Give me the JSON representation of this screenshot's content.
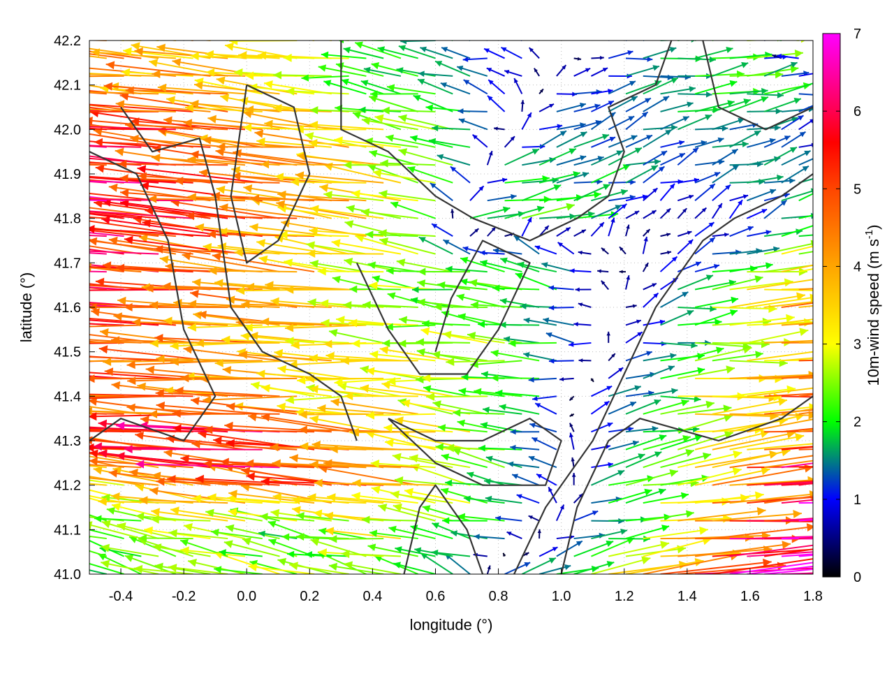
{
  "chart_data": {
    "type": "vector-field",
    "xlabel": "longitude (°)",
    "ylabel": "latitude (°)",
    "xlim": [
      -0.5,
      1.8
    ],
    "ylim": [
      41.0,
      42.2
    ],
    "xticks": [
      "-0.4",
      "-0.2",
      "0.0",
      "0.2",
      "0.4",
      "0.6",
      "0.8",
      "1.0",
      "1.2",
      "1.4",
      "1.6",
      "1.8"
    ],
    "yticks": [
      "41.0",
      "41.1",
      "41.2",
      "41.3",
      "41.4",
      "41.5",
      "41.6",
      "41.7",
      "41.8",
      "41.9",
      "42.0",
      "42.1",
      "42.2"
    ],
    "grid": true,
    "colorbar": {
      "label": "10m-wind speed (m s",
      "label_sup": "-1",
      "label_end": ")",
      "range": [
        0,
        7
      ],
      "ticks": [
        "0",
        "1",
        "2",
        "3",
        "4",
        "5",
        "6",
        "7"
      ],
      "colors": [
        {
          "v": 0,
          "c": "#000000"
        },
        {
          "v": 1,
          "c": "#0000ff"
        },
        {
          "v": 1.5,
          "c": "#008080"
        },
        {
          "v": 2,
          "c": "#00ff00"
        },
        {
          "v": 3,
          "c": "#ffff00"
        },
        {
          "v": 4,
          "c": "#ffa500"
        },
        {
          "v": 5,
          "c": "#ff4500"
        },
        {
          "v": 5.6,
          "c": "#ff0000"
        },
        {
          "v": 6,
          "c": "#ff0050"
        },
        {
          "v": 7,
          "c": "#ff00ff"
        }
      ]
    },
    "vector_grid": {
      "lons": [
        -0.5,
        -0.4,
        -0.3,
        -0.2,
        -0.1,
        0.0,
        0.1,
        0.2,
        0.3,
        0.4,
        0.5,
        0.6,
        0.7,
        0.8,
        0.9,
        1.0,
        1.1,
        1.2,
        1.3,
        1.4,
        1.5,
        1.6,
        1.7,
        1.8
      ],
      "lats": [
        42.2,
        42.1,
        42.0,
        41.9,
        41.8,
        41.7,
        41.6,
        41.5,
        41.4,
        41.3,
        41.2,
        41.1,
        41.0
      ],
      "u": [
        [
          -4,
          -4,
          -4,
          -4,
          -3.5,
          -3.5,
          -3,
          -3,
          -3,
          -2.5,
          -2,
          -1.5,
          -1.5,
          -1,
          -1,
          -0.5,
          0.5,
          1,
          1.5,
          2,
          2,
          2.5,
          -2,
          -3
        ],
        [
          -4.5,
          -4.5,
          -4,
          -4,
          -4,
          -3.5,
          -3.5,
          -3,
          -2.5,
          -2,
          -2,
          -2,
          -1.5,
          -1,
          -0.5,
          1,
          1,
          1.5,
          1.5,
          2,
          2,
          2,
          2,
          1.5
        ],
        [
          -5.5,
          -5.5,
          -5,
          -5,
          -4.5,
          -4.5,
          -4,
          -4,
          -3.5,
          -3,
          -2.5,
          -2.5,
          -2,
          -1,
          1,
          1.5,
          1,
          1,
          1.5,
          1.5,
          1.5,
          1.5,
          1,
          0.5
        ],
        [
          -5.5,
          -5.5,
          -5.5,
          -5,
          -5,
          -5,
          -4.5,
          -4.5,
          -4,
          -3.5,
          -3,
          -2.5,
          -2,
          2,
          2,
          1.5,
          1.5,
          1.5,
          1,
          1,
          1.5,
          1.5,
          1.5,
          1
        ],
        [
          -6,
          -6,
          -5.5,
          -5.5,
          -5,
          -5,
          -4.5,
          -4.5,
          -4,
          -3.5,
          -3,
          -2.5,
          2,
          2,
          2,
          2,
          1.5,
          0.5,
          0.5,
          0.5,
          0.5,
          1,
          1.5,
          2
        ],
        [
          -6,
          -5.5,
          -5.5,
          -5,
          -4.5,
          -4.5,
          -4,
          -4,
          -3.5,
          -3,
          -2.5,
          -2.5,
          -2,
          -2,
          -2,
          -1.5,
          -1,
          -0.5,
          0.5,
          1,
          1.5,
          2,
          3,
          3
        ],
        [
          -5.5,
          -5.5,
          -5,
          -5,
          -4.5,
          -4.5,
          -4,
          -4,
          -3.5,
          -3,
          -2.5,
          -2.5,
          -2,
          -2,
          -2,
          -1.5,
          -0.5,
          0.5,
          1,
          2,
          3,
          4,
          4.5,
          4
        ],
        [
          -5.5,
          -5,
          -5,
          -5,
          -4.5,
          -4,
          -4,
          -3.5,
          -3.5,
          -3,
          -3,
          -3,
          -3,
          -2.5,
          -2,
          -2,
          -1,
          1,
          1.5,
          2,
          2.5,
          3,
          4,
          4.5
        ],
        [
          -5,
          -5,
          -4.5,
          -4.5,
          -4,
          -4,
          -4,
          -3.5,
          -3.5,
          -3,
          -3,
          -3,
          -2.5,
          -2.5,
          -2,
          -1,
          1,
          1.5,
          2,
          3,
          3.5,
          4,
          4.5,
          5
        ],
        [
          -5,
          -5,
          -5,
          -5,
          -5.5,
          -6,
          -6,
          -5.5,
          -5,
          -4.5,
          -4,
          -3.5,
          -3,
          -2.5,
          -1.5,
          -1,
          1,
          1.5,
          2,
          3,
          3.5,
          4,
          4.5,
          5.5
        ],
        [
          -3,
          -3,
          -3.5,
          -4,
          -4.5,
          -5,
          -5,
          -5,
          -5.5,
          -5,
          -4.5,
          -3.5,
          -3,
          -2,
          -1.5,
          -1,
          1.5,
          2,
          2.5,
          3,
          4,
          5,
          6,
          6.5
        ],
        [
          -2,
          -2,
          -2.5,
          -2.5,
          -2.5,
          -2.5,
          -2,
          -2,
          -2,
          -2.5,
          -3,
          -2.5,
          -2,
          -2,
          -1,
          1,
          1.5,
          2,
          3,
          4.5,
          5.5,
          6,
          6.5,
          7
        ],
        [
          -2,
          -2,
          -2.5,
          -2.5,
          -2.5,
          -2.5,
          -2.5,
          -2.5,
          -2.5,
          -2.5,
          -2.5,
          -2,
          -1.5,
          1,
          1.5,
          2,
          2.5,
          3.5,
          5,
          5.5,
          6,
          6.5,
          6.5,
          7
        ]
      ],
      "v_by_lat": [
        0.3,
        0.3,
        0.4,
        0.4,
        0.5,
        0.4,
        0.3,
        0.2,
        0.2,
        0.4,
        0.5,
        0.3,
        0.6
      ]
    },
    "terrain_contours": [
      [
        [
          0.3,
          42.2
        ],
        [
          0.3,
          42.0
        ],
        [
          0.45,
          41.95
        ],
        [
          0.6,
          41.85
        ],
        [
          0.72,
          41.8
        ],
        [
          0.9,
          41.75
        ],
        [
          1.05,
          41.8
        ],
        [
          1.15,
          41.85
        ],
        [
          1.2,
          41.95
        ],
        [
          1.15,
          42.05
        ],
        [
          1.3,
          42.1
        ],
        [
          1.35,
          42.2
        ]
      ],
      [
        [
          -0.5,
          41.95
        ],
        [
          -0.35,
          41.9
        ],
        [
          -0.25,
          41.75
        ],
        [
          -0.2,
          41.55
        ],
        [
          -0.1,
          41.4
        ],
        [
          -0.2,
          41.3
        ],
        [
          -0.4,
          41.35
        ],
        [
          -0.5,
          41.3
        ]
      ],
      [
        [
          0.35,
          41.7
        ],
        [
          0.45,
          41.55
        ],
        [
          0.55,
          41.45
        ],
        [
          0.7,
          41.45
        ],
        [
          0.8,
          41.55
        ],
        [
          0.9,
          41.7
        ],
        [
          0.75,
          41.75
        ],
        [
          0.65,
          41.62
        ],
        [
          0.6,
          41.5
        ]
      ],
      [
        [
          0.85,
          41.0
        ],
        [
          0.95,
          41.15
        ],
        [
          1.1,
          41.3
        ],
        [
          1.2,
          41.45
        ],
        [
          1.3,
          41.6
        ],
        [
          1.45,
          41.75
        ],
        [
          1.55,
          41.8
        ],
        [
          1.7,
          41.85
        ],
        [
          1.8,
          41.9
        ]
      ],
      [
        [
          1.0,
          41.0
        ],
        [
          1.05,
          41.15
        ],
        [
          1.15,
          41.3
        ],
        [
          1.25,
          41.35
        ],
        [
          1.5,
          41.3
        ],
        [
          1.7,
          41.35
        ],
        [
          1.8,
          41.4
        ]
      ],
      [
        [
          0.0,
          42.1
        ],
        [
          0.15,
          42.05
        ],
        [
          0.2,
          41.9
        ],
        [
          0.1,
          41.75
        ],
        [
          0.0,
          41.7
        ],
        [
          -0.05,
          41.85
        ],
        [
          0.0,
          42.1
        ]
      ],
      [
        [
          0.45,
          41.35
        ],
        [
          0.6,
          41.3
        ],
        [
          0.75,
          41.3
        ],
        [
          0.9,
          41.35
        ],
        [
          1.0,
          41.3
        ],
        [
          0.95,
          41.2
        ],
        [
          0.75,
          41.2
        ],
        [
          0.6,
          41.25
        ],
        [
          0.45,
          41.35
        ]
      ],
      [
        [
          0.5,
          41.0
        ],
        [
          0.55,
          41.15
        ],
        [
          0.6,
          41.2
        ],
        [
          0.7,
          41.1
        ],
        [
          0.75,
          41.0
        ]
      ],
      [
        [
          -0.4,
          42.05
        ],
        [
          -0.3,
          41.95
        ],
        [
          -0.15,
          41.98
        ],
        [
          -0.1,
          41.85
        ],
        [
          -0.05,
          41.6
        ],
        [
          0.05,
          41.5
        ],
        [
          0.2,
          41.45
        ],
        [
          0.3,
          41.4
        ],
        [
          0.35,
          41.3
        ]
      ],
      [
        [
          1.45,
          42.2
        ],
        [
          1.5,
          42.05
        ],
        [
          1.65,
          42.0
        ],
        [
          1.8,
          42.05
        ]
      ]
    ]
  }
}
